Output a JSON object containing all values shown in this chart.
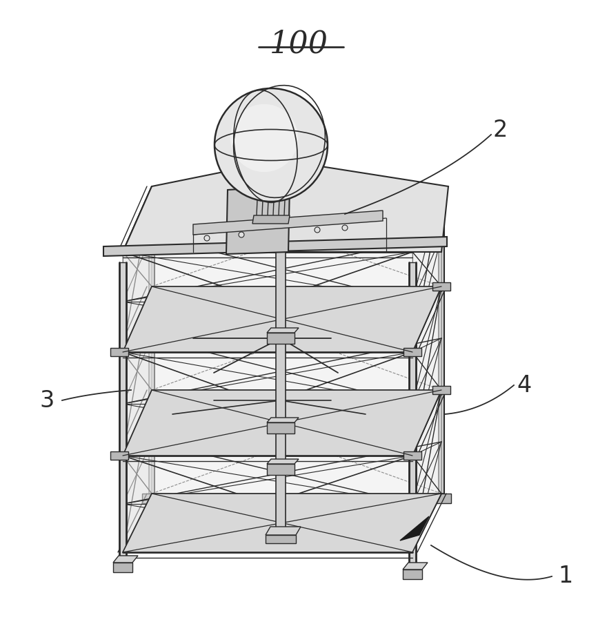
{
  "bg_color": "#ffffff",
  "line_color": "#2a2a2a",
  "gray_light": "#d4d4d4",
  "gray_mid": "#b8b8b8",
  "gray_dark": "#909090",
  "title": "100",
  "label_1": "1",
  "label_2": "2",
  "label_3": "3",
  "label_4": "4",
  "figsize": [
    8.67,
    9.17
  ],
  "dpi": 100
}
